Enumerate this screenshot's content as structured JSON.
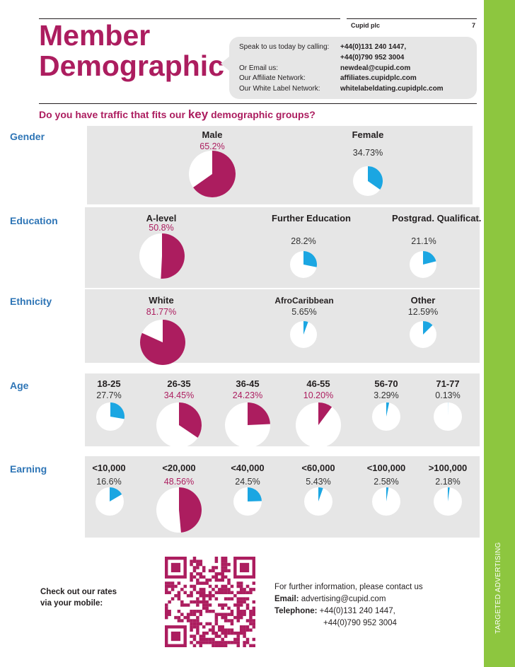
{
  "header": {
    "company": "Cupid plc",
    "page_number": "7",
    "title_line1": "Member",
    "title_line2": "Demographic"
  },
  "contact_box": {
    "rows": [
      {
        "label": "Speak to us today by calling:",
        "value": "+44(0)131 240 1447,"
      },
      {
        "label": "",
        "value": "+44(0)790 952 3004"
      },
      {
        "label": "Or Email us:",
        "value": "newdeal@cupid.com"
      },
      {
        "label": "Our Affiliate Network:",
        "value": "affiliates.cupidplc.com"
      },
      {
        "label": "Our White Label Network:",
        "value": "whitelabeldating.cupidplc.com"
      }
    ]
  },
  "question": {
    "before": "Do you have traffic that fits our ",
    "key": "key",
    "after": " demographic groups?"
  },
  "side_text": "TARGETED ADVERTISING",
  "colors": {
    "magenta": "#ac1d5f",
    "blue": "#1ba6e2",
    "green": "#8dc63f",
    "panel": "#e6e6e6",
    "label_blue": "#2e75b6"
  },
  "chart_data": [
    {
      "type": "pie",
      "title": "Gender",
      "categories": [
        "Male",
        "Female"
      ],
      "values": [
        65.2,
        34.73
      ],
      "value_labels": [
        "65.2%",
        "34.73%"
      ]
    },
    {
      "type": "pie",
      "title": "Education",
      "categories": [
        "A-level",
        "Further Education",
        "Postgrad. Qualificat."
      ],
      "values": [
        50.8,
        28.2,
        21.1
      ],
      "value_labels": [
        "50.8%",
        "28.2%",
        "21.1%"
      ]
    },
    {
      "type": "pie",
      "title": "Ethnicity",
      "categories": [
        "White",
        "AfroCaribbean",
        "Other"
      ],
      "values": [
        81.77,
        5.65,
        12.59
      ],
      "value_labels": [
        "81.77%",
        "5.65%",
        "12.59%"
      ]
    },
    {
      "type": "pie",
      "title": "Age",
      "categories": [
        "18-25",
        "26-35",
        "36-45",
        "46-55",
        "56-70",
        "71-77"
      ],
      "values": [
        27.7,
        34.45,
        24.23,
        10.2,
        3.29,
        0.13
      ],
      "value_labels": [
        "27.7%",
        "34.45%",
        "24.23%",
        "10.20%",
        "3.29%",
        "0.13%"
      ]
    },
    {
      "type": "pie",
      "title": "Earning",
      "categories": [
        "<10,000",
        "<20,000",
        "<40,000",
        "<60,000",
        "<100,000",
        ">100,000"
      ],
      "values": [
        16.6,
        48.56,
        24.5,
        5.43,
        2.58,
        2.18
      ],
      "value_labels": [
        "16.6%",
        "48.56%",
        "24.5%",
        "5.43%",
        "2.58%",
        "2.18%"
      ]
    }
  ],
  "footer": {
    "rates_line1": "Check out our rates",
    "rates_line2": "via your mobile:",
    "info_line": "For further information, please contact us",
    "email_label": "Email:",
    "email_value": " advertising@cupid.com",
    "phone_label": "Telephone:",
    "phone_value1": " +44(0)131 240 1447,",
    "phone_value2": "+44(0)790 952 3004"
  }
}
